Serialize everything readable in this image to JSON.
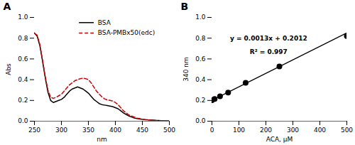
{
  "chart_data": [
    {
      "type": "line",
      "title": "A",
      "xlabel": "nm",
      "ylabel": "Abs",
      "x": [
        250,
        255,
        260,
        265,
        270,
        275,
        280,
        285,
        290,
        295,
        300,
        305,
        310,
        315,
        320,
        325,
        330,
        335,
        340,
        345,
        350,
        355,
        360,
        365,
        370,
        375,
        380,
        385,
        390,
        395,
        400,
        405,
        410,
        415,
        420,
        425,
        430,
        435,
        440,
        445,
        450,
        455,
        460,
        465,
        470,
        475,
        480,
        485,
        490,
        495,
        500
      ],
      "series": [
        {
          "name": "BSA",
          "color": "#000000",
          "line_style": "solid",
          "values": [
            0.85,
            0.82,
            0.73,
            0.58,
            0.42,
            0.28,
            0.2,
            0.18,
            0.19,
            0.2,
            0.21,
            0.23,
            0.26,
            0.29,
            0.31,
            0.32,
            0.33,
            0.32,
            0.31,
            0.29,
            0.27,
            0.24,
            0.21,
            0.19,
            0.17,
            0.16,
            0.155,
            0.15,
            0.145,
            0.14,
            0.13,
            0.12,
            0.1,
            0.08,
            0.065,
            0.05,
            0.04,
            0.03,
            0.025,
            0.02,
            0.018,
            0.015,
            0.013,
            0.012,
            0.01,
            0.008,
            0.007,
            0.005,
            0.004,
            0.003,
            0.002
          ]
        },
        {
          "name": "BSA-PMBx50(edc)",
          "color": "#cc0000",
          "line_style": "dashed",
          "values": [
            0.845,
            0.83,
            0.74,
            0.59,
            0.43,
            0.3,
            0.23,
            0.22,
            0.23,
            0.245,
            0.26,
            0.29,
            0.32,
            0.35,
            0.37,
            0.39,
            0.4,
            0.41,
            0.415,
            0.41,
            0.4,
            0.37,
            0.33,
            0.29,
            0.26,
            0.235,
            0.215,
            0.205,
            0.2,
            0.195,
            0.18,
            0.16,
            0.13,
            0.1,
            0.08,
            0.06,
            0.05,
            0.04,
            0.03,
            0.025,
            0.02,
            0.015,
            0.012,
            0.01,
            0.008,
            0.006,
            0.005,
            0.004,
            0.003,
            0.002,
            0.002
          ]
        }
      ],
      "xlim": [
        250,
        500
      ],
      "xticks": [
        250,
        300,
        350,
        400,
        450,
        500
      ],
      "ylim": [
        0,
        1
      ],
      "yticks": [
        {
          "value": 0,
          "label": "0.0"
        },
        0.2,
        0.4,
        0.6,
        0.8,
        {
          "value": 1,
          "label": "1.0"
        }
      ],
      "legend": "upper right"
    },
    {
      "type": "scatter",
      "title": "B",
      "xlabel": "ACA, μM",
      "ylabel": "340 nm",
      "series": [
        {
          "type": "line",
          "color": "#000000",
          "x": [
            0,
            500
          ],
          "values": [
            0.2012,
            0.8512
          ]
        },
        {
          "type": "scatter",
          "color": "#000000",
          "marker": "circle",
          "x": [
            0,
            10,
            30,
            60,
            125,
            250,
            500
          ],
          "values": [
            0.2012,
            0.214,
            0.24,
            0.275,
            0.37,
            0.527,
            0.82
          ]
        }
      ],
      "annotations": [
        {
          "text": "y = 0.0013x + 0.2012"
        },
        {
          "text": "R² = 0.997"
        }
      ],
      "xlim": [
        0,
        500
      ],
      "xticks": [
        0,
        100,
        200,
        300,
        400,
        500
      ],
      "ylim": [
        0,
        1
      ],
      "yticks": [
        {
          "value": 0,
          "label": "0.0"
        },
        0.2,
        0.4,
        0.6,
        0.8,
        {
          "value": 1,
          "label": "1.0"
        }
      ]
    }
  ]
}
